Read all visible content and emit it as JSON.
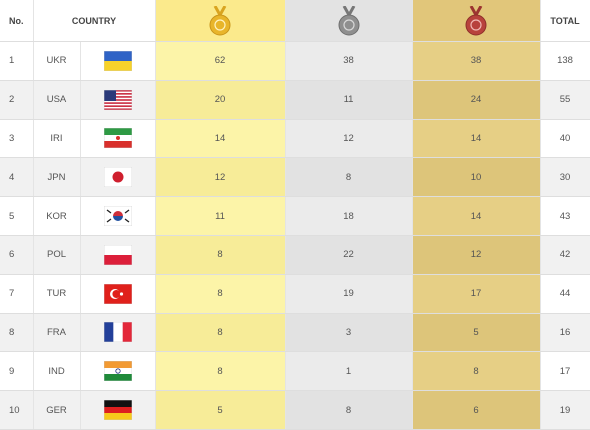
{
  "table": {
    "header": {
      "rank": "No.",
      "country": "COUNTRY",
      "total": "TOTAL"
    },
    "rows": [
      {
        "rank": 1,
        "country": "UKR",
        "gold": 62,
        "silver": 38,
        "bronze": 38,
        "total": 138
      },
      {
        "rank": 2,
        "country": "USA",
        "gold": 20,
        "silver": 11,
        "bronze": 24,
        "total": 55
      },
      {
        "rank": 3,
        "country": "IRI",
        "gold": 14,
        "silver": 12,
        "bronze": 14,
        "total": 40
      },
      {
        "rank": 4,
        "country": "JPN",
        "gold": 12,
        "silver": 8,
        "bronze": 10,
        "total": 30
      },
      {
        "rank": 5,
        "country": "KOR",
        "gold": 11,
        "silver": 18,
        "bronze": 14,
        "total": 43
      },
      {
        "rank": 6,
        "country": "POL",
        "gold": 8,
        "silver": 22,
        "bronze": 12,
        "total": 42
      },
      {
        "rank": 7,
        "country": "TUR",
        "gold": 8,
        "silver": 19,
        "bronze": 17,
        "total": 44
      },
      {
        "rank": 8,
        "country": "FRA",
        "gold": 8,
        "silver": 3,
        "bronze": 5,
        "total": 16
      },
      {
        "rank": 9,
        "country": "IND",
        "gold": 8,
        "silver": 1,
        "bronze": 8,
        "total": 17
      },
      {
        "rank": 10,
        "country": "GER",
        "gold": 5,
        "silver": 8,
        "bronze": 6,
        "total": 19
      }
    ]
  }
}
